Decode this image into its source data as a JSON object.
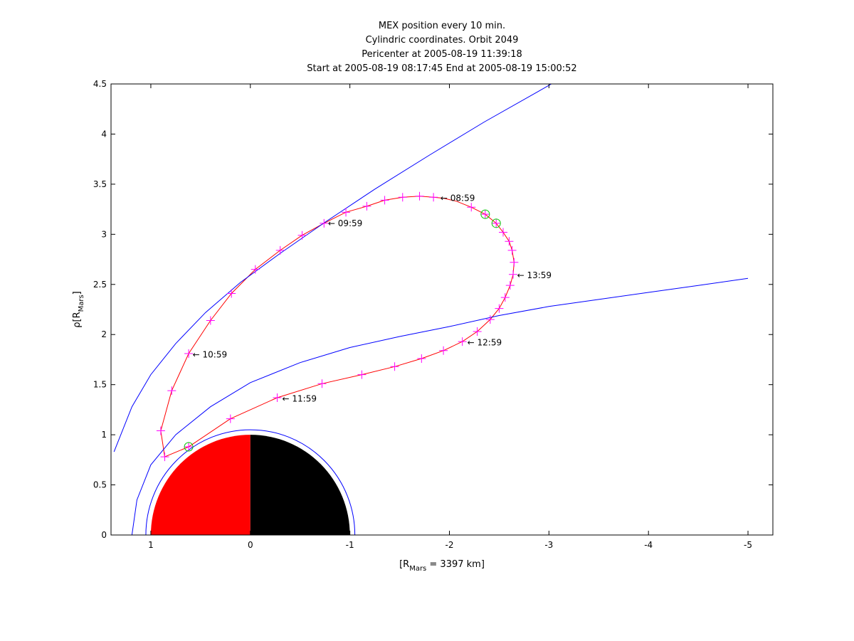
{
  "chart_data": {
    "type": "line",
    "title_lines": [
      "MEX position every 10 min.",
      "Cylindric coordinates. Orbit 2049",
      "Pericenter at 2005-08-19 11:39:18",
      "Start at 2005-08-19 08:17:45 End at 2005-08-19 15:00:52"
    ],
    "xlabel": {
      "pre": "[R",
      "sub": "Mars",
      "post": " = 3397 km]"
    },
    "ylabel": {
      "pre": "ρ[R",
      "sub": "Mars",
      "post": "]"
    },
    "xlim": [
      1.4,
      -5.25
    ],
    "ylim": [
      0,
      4.5
    ],
    "x_reversed": true,
    "grid": false,
    "x_ticks": [
      1,
      0,
      -1,
      -2,
      -3,
      -4,
      -5
    ],
    "x_tick_labels": [
      "1",
      "0",
      "-1",
      "-2",
      "-3",
      "-4",
      "-5"
    ],
    "y_ticks": [
      0,
      0.5,
      1,
      1.5,
      2,
      2.5,
      3,
      3.5,
      4,
      4.5
    ],
    "y_tick_labels": [
      "0",
      "0.5",
      "1",
      "1.5",
      "2",
      "2.5",
      "3",
      "3.5",
      "4",
      "4.5"
    ],
    "colors": {
      "orbit": "#ff0000",
      "markers": "#ff00ff",
      "boundaries": "#0000ff",
      "day_side": "#ff0000",
      "night_side": "#000000",
      "special_markers": "#00cc00"
    },
    "planet": {
      "radius": 1.0,
      "day_side": "positive-x",
      "night_side": "negative-x"
    },
    "series": [
      {
        "role": "orbit-track",
        "points": [
          [
            -1.84,
            3.37
          ],
          [
            -1.7,
            3.38
          ],
          [
            -1.53,
            3.37
          ],
          [
            -1.35,
            3.34
          ],
          [
            -1.17,
            3.28
          ],
          [
            -0.96,
            3.22
          ],
          [
            -0.74,
            3.11
          ],
          [
            -0.52,
            2.99
          ],
          [
            -0.3,
            2.84
          ],
          [
            -0.05,
            2.65
          ],
          [
            0.19,
            2.41
          ],
          [
            0.4,
            2.14
          ],
          [
            0.62,
            1.81
          ],
          [
            0.79,
            1.44
          ],
          [
            0.9,
            1.04
          ],
          [
            0.86,
            0.78
          ],
          [
            0.62,
            0.88
          ],
          [
            0.2,
            1.16
          ],
          [
            -0.27,
            1.37
          ],
          [
            -0.72,
            1.51
          ],
          [
            -1.12,
            1.6
          ],
          [
            -1.45,
            1.68
          ],
          [
            -1.72,
            1.76
          ],
          [
            -1.94,
            1.84
          ],
          [
            -2.13,
            1.93
          ],
          [
            -2.28,
            2.03
          ],
          [
            -2.41,
            2.15
          ],
          [
            -2.5,
            2.26
          ],
          [
            -2.56,
            2.37
          ],
          [
            -2.61,
            2.49
          ],
          [
            -2.64,
            2.6
          ],
          [
            -2.65,
            2.72
          ],
          [
            -2.63,
            2.84
          ],
          [
            -2.6,
            2.93
          ],
          [
            -2.54,
            3.02
          ],
          [
            -2.47,
            3.11
          ],
          [
            -2.36,
            3.2
          ],
          [
            -2.22,
            3.27
          ],
          [
            -2.07,
            3.33
          ],
          [
            -1.94,
            3.36
          ],
          [
            -1.84,
            3.37
          ]
        ]
      },
      {
        "role": "outer-boundary",
        "points": [
          [
            1.37,
            0.83
          ],
          [
            1.19,
            1.28
          ],
          [
            1.0,
            1.6
          ],
          [
            0.75,
            1.91
          ],
          [
            0.45,
            2.22
          ],
          [
            0.1,
            2.52
          ],
          [
            -0.3,
            2.81
          ],
          [
            -0.75,
            3.12
          ],
          [
            -1.25,
            3.45
          ],
          [
            -1.8,
            3.79
          ],
          [
            -2.35,
            4.12
          ],
          [
            -2.9,
            4.43
          ],
          [
            -3.2,
            4.6
          ]
        ]
      },
      {
        "role": "inner-boundary",
        "points": [
          [
            1.19,
            0.0
          ],
          [
            1.14,
            0.35
          ],
          [
            1.0,
            0.7
          ],
          [
            0.75,
            1.0
          ],
          [
            0.4,
            1.28
          ],
          [
            0.0,
            1.52
          ],
          [
            -0.5,
            1.72
          ],
          [
            -1.0,
            1.87
          ],
          [
            -1.5,
            1.98
          ],
          [
            -2.0,
            2.08
          ],
          [
            -2.5,
            2.19
          ],
          [
            -3.0,
            2.28
          ],
          [
            -3.5,
            2.35
          ],
          [
            -4.0,
            2.42
          ],
          [
            -4.5,
            2.49
          ],
          [
            -5.0,
            2.56
          ]
        ]
      }
    ],
    "markers_10min": [
      [
        -1.84,
        3.37
      ],
      [
        -1.7,
        3.38
      ],
      [
        -1.53,
        3.37
      ],
      [
        -1.35,
        3.34
      ],
      [
        -1.17,
        3.28
      ],
      [
        -0.96,
        3.22
      ],
      [
        -0.74,
        3.11
      ],
      [
        -0.52,
        2.99
      ],
      [
        -0.3,
        2.84
      ],
      [
        -0.05,
        2.65
      ],
      [
        0.19,
        2.41
      ],
      [
        0.4,
        2.14
      ],
      [
        0.62,
        1.81
      ],
      [
        0.79,
        1.44
      ],
      [
        0.9,
        1.04
      ],
      [
        0.86,
        0.78
      ],
      [
        0.62,
        0.88
      ],
      [
        0.2,
        1.16
      ],
      [
        -0.27,
        1.37
      ],
      [
        -0.72,
        1.51
      ],
      [
        -1.12,
        1.6
      ],
      [
        -1.45,
        1.68
      ],
      [
        -1.72,
        1.76
      ],
      [
        -1.94,
        1.84
      ],
      [
        -2.13,
        1.93
      ],
      [
        -2.28,
        2.03
      ],
      [
        -2.41,
        2.15
      ],
      [
        -2.5,
        2.26
      ],
      [
        -2.56,
        2.37
      ],
      [
        -2.61,
        2.49
      ],
      [
        -2.64,
        2.6
      ],
      [
        -2.65,
        2.72
      ],
      [
        -2.63,
        2.84
      ],
      [
        -2.6,
        2.93
      ],
      [
        -2.54,
        3.02
      ],
      [
        -2.47,
        3.11
      ],
      [
        -2.36,
        3.2
      ],
      [
        -2.22,
        3.27
      ]
    ],
    "special_markers": [
      [
        -2.36,
        3.2
      ],
      [
        -2.47,
        3.11
      ],
      [
        0.62,
        0.88
      ]
    ],
    "annotations": [
      {
        "text": "← 08:59",
        "x": -1.91,
        "y": 3.36
      },
      {
        "text": "← 09:59",
        "x": -0.78,
        "y": 3.11
      },
      {
        "text": "← 10:59",
        "x": 0.58,
        "y": 1.8
      },
      {
        "text": "← 11:59",
        "x": -0.32,
        "y": 1.36
      },
      {
        "text": "← 12:59",
        "x": -2.18,
        "y": 1.92
      },
      {
        "text": "← 13:59",
        "x": -2.68,
        "y": 2.59
      }
    ]
  }
}
